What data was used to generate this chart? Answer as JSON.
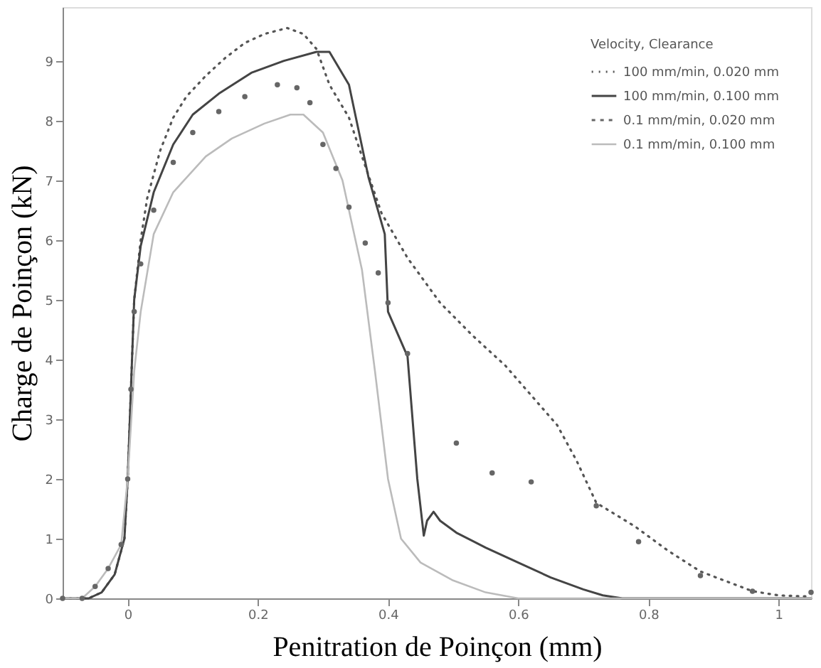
{
  "chart_data": {
    "type": "line",
    "xlabel": "Penitration de Poinçon (mm)",
    "ylabel": "Charge de Poinçon (kN)",
    "legend_title": "Velocity,      Clearance",
    "legend": "top right",
    "grid": false,
    "xlim": [
      -0.1,
      1.05
    ],
    "xticks": [
      0,
      0.2,
      0.4,
      0.6,
      0.8,
      1
    ],
    "marker": "none",
    "ylim": [
      0,
      9.9
    ],
    "yticks": [
      0,
      1,
      2,
      3,
      4,
      5,
      6,
      7,
      8,
      9
    ],
    "series": [
      {
        "name": "100 mm/min, 0.020 mm",
        "color": "#555555",
        "line_style": "dotted",
        "x": [
          -0.1,
          -0.06,
          -0.04,
          -0.02,
          -0.005,
          0,
          0.005,
          0.01,
          0.02,
          0.03,
          0.05,
          0.07,
          0.09,
          0.12,
          0.15,
          0.18,
          0.21,
          0.245,
          0.27,
          0.29,
          0.31,
          0.34,
          0.36,
          0.39,
          0.43,
          0.48,
          0.53,
          0.58,
          0.62,
          0.66,
          0.69,
          0.72,
          0.78,
          0.83,
          0.88,
          0.96,
          1.0,
          1.05
        ],
        "values": [
          0,
          0,
          0.1,
          0.4,
          1.0,
          2.0,
          3.5,
          5.0,
          6.0,
          6.7,
          7.5,
          8.05,
          8.4,
          8.75,
          9.05,
          9.3,
          9.45,
          9.55,
          9.45,
          9.2,
          8.6,
          8.05,
          7.4,
          6.45,
          5.7,
          4.95,
          4.4,
          3.9,
          3.4,
          2.9,
          2.3,
          1.6,
          1.2,
          0.8,
          0.45,
          0.12,
          0.05,
          0.03
        ]
      },
      {
        "name": "100 mm/min, 0.100 mm",
        "color": "#444444",
        "line_style": "solid",
        "x": [
          -0.1,
          -0.06,
          -0.04,
          -0.02,
          -0.005,
          0,
          0.005,
          0.01,
          0.02,
          0.04,
          0.07,
          0.1,
          0.14,
          0.19,
          0.24,
          0.29,
          0.31,
          0.34,
          0.37,
          0.395,
          0.4,
          0.43,
          0.445,
          0.455,
          0.46,
          0.47,
          0.48,
          0.505,
          0.55,
          0.6,
          0.65,
          0.7,
          0.73,
          0.76,
          1.05
        ],
        "values": [
          0,
          0,
          0.1,
          0.4,
          1.0,
          2.0,
          3.5,
          5.0,
          5.9,
          6.8,
          7.6,
          8.1,
          8.45,
          8.8,
          9.0,
          9.15,
          9.15,
          8.6,
          7.05,
          6.1,
          4.8,
          4.05,
          2.0,
          1.05,
          1.3,
          1.45,
          1.3,
          1.1,
          0.85,
          0.6,
          0.35,
          0.15,
          0.05,
          0,
          0
        ]
      },
      {
        "name": "0.1 mm/min, 0.020 mm",
        "color": "#666666",
        "type": "scatter",
        "marker": "circle",
        "x": [
          -0.1,
          -0.07,
          -0.05,
          -0.03,
          -0.01,
          0,
          0.005,
          0.01,
          0.02,
          0.04,
          0.07,
          0.1,
          0.14,
          0.18,
          0.23,
          0.26,
          0.28,
          0.3,
          0.32,
          0.34,
          0.365,
          0.385,
          0.4,
          0.43,
          0.505,
          0.56,
          0.62,
          0.72,
          0.785,
          0.88,
          0.96,
          1.05
        ],
        "values": [
          0,
          0,
          0.2,
          0.5,
          0.9,
          2.0,
          3.5,
          4.8,
          5.6,
          6.5,
          7.3,
          7.8,
          8.15,
          8.4,
          8.6,
          8.55,
          8.3,
          7.6,
          7.2,
          6.55,
          5.95,
          5.45,
          4.95,
          4.1,
          2.6,
          2.1,
          1.95,
          1.55,
          0.95,
          0.38,
          0.12,
          0.1
        ]
      },
      {
        "name": "0.1 mm/min, 0.100 mm",
        "color": "#bbbbbb",
        "line_style": "solid",
        "x": [
          -0.1,
          -0.07,
          -0.05,
          -0.03,
          -0.01,
          0,
          0.01,
          0.02,
          0.04,
          0.07,
          0.12,
          0.16,
          0.21,
          0.25,
          0.27,
          0.3,
          0.33,
          0.36,
          0.38,
          0.4,
          0.42,
          0.45,
          0.5,
          0.55,
          0.6,
          1.05
        ],
        "values": [
          0,
          0,
          0.2,
          0.5,
          0.9,
          2.0,
          3.8,
          4.8,
          6.1,
          6.8,
          7.4,
          7.7,
          7.95,
          8.1,
          8.1,
          7.8,
          7.0,
          5.5,
          3.8,
          2.0,
          1.0,
          0.6,
          0.3,
          0.1,
          0,
          0
        ]
      }
    ]
  }
}
